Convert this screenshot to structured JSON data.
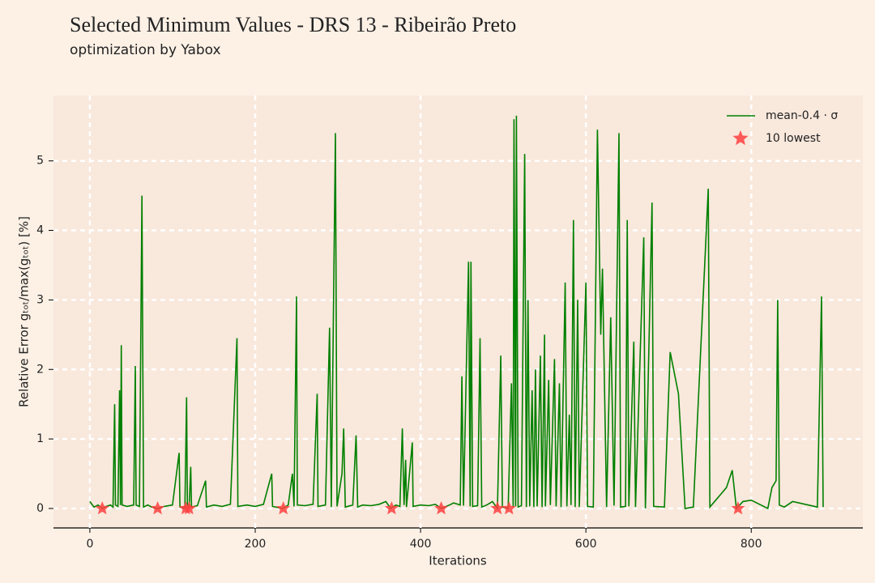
{
  "chart_data": {
    "type": "line",
    "title": "Selected Minimum Values - DRS 13 - Ribeirão Preto",
    "subtitle": "optimization by Yabox",
    "x_label": "Iterations",
    "y_label": "Relative Error gₜₒₜ/max(gₜₒₜ) [%]",
    "xlim": [
      -44,
      935
    ],
    "ylim": [
      -0.28,
      5.94
    ],
    "xticks": [
      0,
      200,
      400,
      600,
      800
    ],
    "yticks": [
      0,
      1,
      2,
      3,
      4,
      5
    ],
    "grid": true,
    "legend": "upper right",
    "series": [
      {
        "name": "mean-0.4 · σ",
        "color": "#008000",
        "x": [
          0,
          5,
          10,
          15,
          20,
          25,
          28,
          30,
          31,
          34,
          36,
          37,
          38,
          39,
          45,
          53,
          55,
          56,
          60,
          63,
          65,
          70,
          75,
          82,
          90,
          100,
          108,
          109,
          115,
          117,
          118,
          120,
          122,
          123,
          130,
          140,
          141,
          150,
          160,
          170,
          178,
          179,
          190,
          200,
          210,
          220,
          221,
          233,
          240,
          245,
          247,
          250,
          251,
          260,
          270,
          275,
          276,
          285,
          290,
          292,
          297,
          299,
          305,
          307,
          309,
          318,
          322,
          324,
          330,
          340,
          350,
          358,
          364,
          370,
          375,
          378,
          380,
          382,
          383,
          390,
          391,
          400,
          410,
          418,
          425,
          435,
          440,
          448,
          450,
          452,
          458,
          460,
          461,
          463,
          469,
          472,
          474,
          480,
          487,
          493,
          497,
          499,
          506,
          510,
          512,
          513,
          515,
          516,
          518,
          522,
          526,
          528,
          530,
          532,
          535,
          537,
          539,
          541,
          545,
          547,
          550,
          551,
          555,
          557,
          562,
          564,
          568,
          570,
          575,
          577,
          580,
          582,
          585,
          587,
          590,
          592,
          600,
          602,
          609,
          614,
          618,
          620,
          625,
          630,
          634,
          640,
          642,
          648,
          650,
          652,
          658,
          660,
          670,
          672,
          680,
          682,
          695,
          702,
          712,
          720,
          730,
          748,
          750,
          770,
          777,
          782,
          790,
          800,
          820,
          825,
          830,
          832,
          834,
          840,
          850,
          880,
          885,
          887
        ],
        "values": [
          0.1,
          0.02,
          0.05,
          0,
          0.03,
          0.05,
          0.02,
          1.5,
          0.05,
          0.03,
          1.7,
          0.05,
          2.35,
          0.05,
          0.03,
          0.05,
          2.05,
          0.05,
          0.03,
          4.5,
          0.02,
          0.05,
          0.02,
          0,
          0.03,
          0.05,
          0.8,
          0.02,
          0,
          1.6,
          0.05,
          0,
          0.6,
          0.02,
          0.04,
          0.4,
          0.02,
          0.05,
          0.03,
          0.06,
          2.45,
          0.03,
          0.05,
          0.03,
          0.06,
          0.5,
          0.03,
          0,
          0.05,
          0.5,
          0.03,
          3.05,
          0.05,
          0.04,
          0.06,
          1.65,
          0.03,
          0.05,
          2.6,
          0.02,
          5.4,
          0.03,
          0.5,
          1.15,
          0.02,
          0.05,
          1.05,
          0.02,
          0.05,
          0.04,
          0.06,
          0.1,
          0,
          0.05,
          0.03,
          1.15,
          0.05,
          0.7,
          0.02,
          0.95,
          0.03,
          0.05,
          0.04,
          0.06,
          0,
          0.05,
          0.08,
          0.05,
          1.9,
          0.04,
          3.55,
          0.03,
          3.55,
          0.03,
          0.04,
          2.45,
          0.02,
          0.05,
          0.1,
          0,
          2.2,
          0.02,
          0,
          1.8,
          0.02,
          5.6,
          0.03,
          5.65,
          0.02,
          0.04,
          5.1,
          0.02,
          3.0,
          0.03,
          1.7,
          0.02,
          2.0,
          0.03,
          2.2,
          0.02,
          2.5,
          0.03,
          1.85,
          0.05,
          2.15,
          0.03,
          1.8,
          0.02,
          3.25,
          0.03,
          1.35,
          0.05,
          4.15,
          0.02,
          3.0,
          0.02,
          3.25,
          0.03,
          0.02,
          5.45,
          2.5,
          3.45,
          0.02,
          2.75,
          0.04,
          5.4,
          0.02,
          0.03,
          4.15,
          0.03,
          2.4,
          0.02,
          3.9,
          0,
          4.4,
          0.03,
          0.02,
          2.25,
          1.65,
          0,
          0.02,
          4.6,
          0.02,
          0.3,
          0.55,
          0,
          0.1,
          0.12,
          0,
          0.3,
          0.4,
          3.0,
          0.05,
          0.02,
          0.1,
          0.02,
          3.05,
          0.02
        ]
      },
      {
        "name": "10 lowest",
        "color": "#ff4040",
        "type": "scatter",
        "x": [
          15,
          82,
          116,
          120,
          234,
          365,
          425,
          493,
          507,
          784
        ],
        "values": [
          0,
          0,
          0,
          0,
          0,
          0,
          0,
          0,
          0,
          0
        ]
      }
    ]
  }
}
